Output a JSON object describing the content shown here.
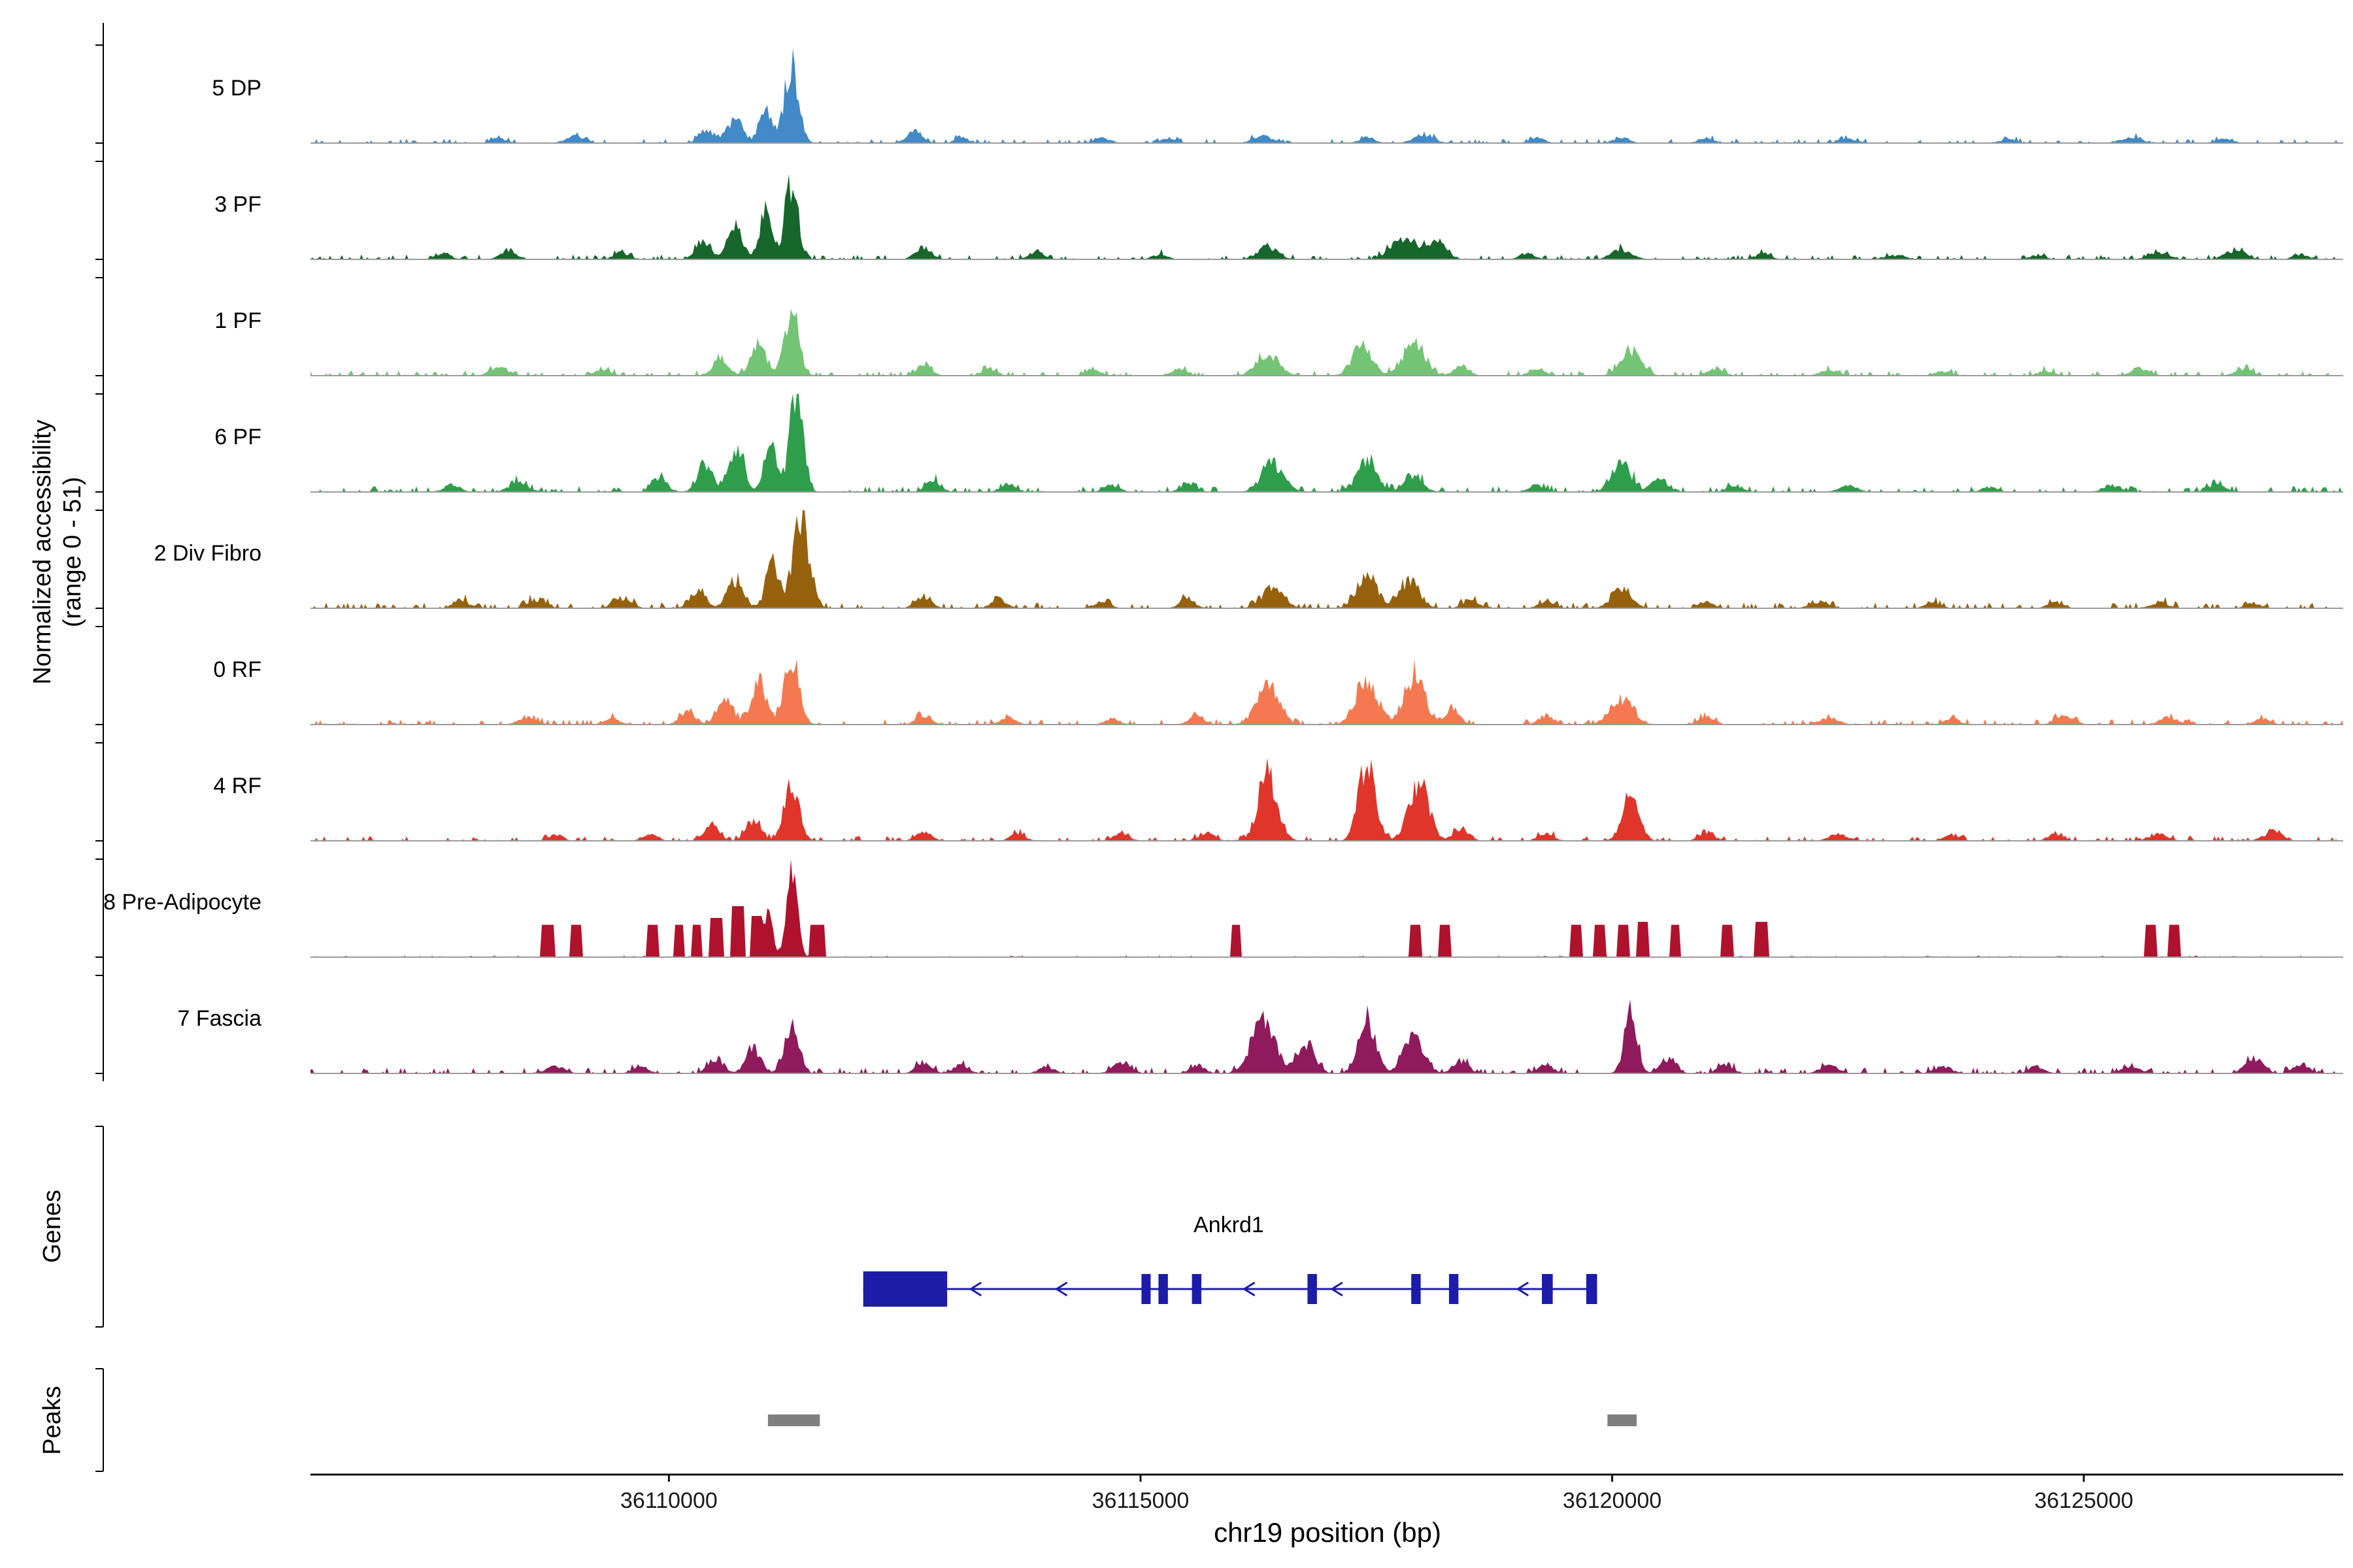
{
  "figure": {
    "y_axis_label_line1": "Normalized accessibility",
    "y_axis_label_line2": "(range 0 - 51)",
    "genes_section_label": "Genes",
    "peaks_section_label": "Peaks",
    "x_axis_label": "chr19 position (bp)"
  },
  "chart_data": {
    "type": "area",
    "subtype": "genome-coverage-tracks",
    "title": "",
    "x_axis": {
      "label": "chr19 position (bp)",
      "chromosome": "chr19",
      "min": 36106200,
      "max": 36127750,
      "ticks": [
        36110000,
        36115000,
        36120000,
        36125000
      ]
    },
    "y_axis": {
      "label": "Normalized accessibility",
      "range_note": "(range 0 - 51)",
      "min": 0,
      "max": 51
    },
    "height_units": "fraction of track maximum (51)",
    "tracks": [
      {
        "label": "5 DP",
        "color": "#4189C7",
        "noise": 0.045,
        "peaks": [
          [
            36111300,
            140,
            0.8
          ],
          [
            36111020,
            120,
            0.4
          ],
          [
            36110700,
            150,
            0.25
          ],
          [
            36110400,
            150,
            0.14
          ],
          [
            36108200,
            150,
            0.05
          ],
          [
            36109000,
            180,
            0.07
          ],
          [
            36112600,
            150,
            0.12
          ],
          [
            36113100,
            120,
            0.07
          ],
          [
            36114600,
            150,
            0.05
          ],
          [
            36115300,
            150,
            0.05
          ],
          [
            36116300,
            200,
            0.07
          ],
          [
            36117400,
            150,
            0.06
          ],
          [
            36118000,
            200,
            0.08
          ],
          [
            36119200,
            150,
            0.05
          ],
          [
            36120100,
            150,
            0.06
          ],
          [
            36121000,
            150,
            0.05
          ],
          [
            36122500,
            200,
            0.04
          ],
          [
            36124200,
            150,
            0.04
          ],
          [
            36125500,
            200,
            0.06
          ],
          [
            36126500,
            150,
            0.05
          ]
        ]
      },
      {
        "label": "3 PF",
        "color": "#17662C",
        "noise": 0.05,
        "peaks": [
          [
            36111300,
            130,
            0.78
          ],
          [
            36111020,
            120,
            0.45
          ],
          [
            36110700,
            160,
            0.33
          ],
          [
            36110350,
            150,
            0.18
          ],
          [
            36107600,
            150,
            0.06
          ],
          [
            36108300,
            150,
            0.1
          ],
          [
            36109500,
            150,
            0.07
          ],
          [
            36112700,
            160,
            0.12
          ],
          [
            36113900,
            150,
            0.08
          ],
          [
            36115200,
            150,
            0.05
          ],
          [
            36116350,
            200,
            0.13
          ],
          [
            36117800,
            260,
            0.22
          ],
          [
            36118150,
            180,
            0.16
          ],
          [
            36119100,
            150,
            0.06
          ],
          [
            36120100,
            200,
            0.1
          ],
          [
            36121600,
            150,
            0.06
          ],
          [
            36123000,
            200,
            0.04
          ],
          [
            36124500,
            150,
            0.04
          ],
          [
            36125800,
            200,
            0.07
          ],
          [
            36126600,
            200,
            0.09
          ],
          [
            36127300,
            150,
            0.05
          ]
        ]
      },
      {
        "label": "1 PF",
        "color": "#74C476",
        "noise": 0.055,
        "peaks": [
          [
            36111300,
            140,
            0.68
          ],
          [
            36110950,
            140,
            0.35
          ],
          [
            36110550,
            150,
            0.18
          ],
          [
            36108200,
            180,
            0.08
          ],
          [
            36109300,
            150,
            0.07
          ],
          [
            36112700,
            150,
            0.11
          ],
          [
            36113400,
            150,
            0.07
          ],
          [
            36114500,
            150,
            0.06
          ],
          [
            36115400,
            150,
            0.07
          ],
          [
            36116350,
            220,
            0.22
          ],
          [
            36117350,
            200,
            0.3
          ],
          [
            36117900,
            220,
            0.34
          ],
          [
            36118400,
            150,
            0.1
          ],
          [
            36119200,
            150,
            0.07
          ],
          [
            36120200,
            200,
            0.26
          ],
          [
            36121100,
            150,
            0.07
          ],
          [
            36122300,
            180,
            0.06
          ],
          [
            36123500,
            150,
            0.05
          ],
          [
            36124600,
            150,
            0.05
          ],
          [
            36125600,
            180,
            0.07
          ],
          [
            36126700,
            180,
            0.07
          ]
        ]
      },
      {
        "label": "6 PF",
        "color": "#2E9E4B",
        "noise": 0.06,
        "peaks": [
          [
            36111350,
            130,
            1.0
          ],
          [
            36111080,
            120,
            0.55
          ],
          [
            36110720,
            150,
            0.42
          ],
          [
            36110380,
            150,
            0.28
          ],
          [
            36109900,
            150,
            0.14
          ],
          [
            36108400,
            180,
            0.1
          ],
          [
            36107700,
            150,
            0.08
          ],
          [
            36112800,
            150,
            0.12
          ],
          [
            36113600,
            150,
            0.09
          ],
          [
            36114700,
            150,
            0.07
          ],
          [
            36115500,
            150,
            0.08
          ],
          [
            36116400,
            220,
            0.28
          ],
          [
            36117400,
            200,
            0.3
          ],
          [
            36117900,
            180,
            0.18
          ],
          [
            36119200,
            150,
            0.07
          ],
          [
            36120100,
            200,
            0.28
          ],
          [
            36120500,
            150,
            0.14
          ],
          [
            36121300,
            150,
            0.07
          ],
          [
            36122500,
            180,
            0.06
          ],
          [
            36124000,
            150,
            0.05
          ],
          [
            36125300,
            180,
            0.07
          ],
          [
            36126400,
            180,
            0.07
          ]
        ]
      },
      {
        "label": "2 Div Fibro",
        "color": "#96610D",
        "noise": 0.06,
        "peaks": [
          [
            36111400,
            160,
            0.92
          ],
          [
            36111100,
            130,
            0.5
          ],
          [
            36110700,
            160,
            0.28
          ],
          [
            36110300,
            150,
            0.18
          ],
          [
            36109500,
            180,
            0.1
          ],
          [
            36108600,
            180,
            0.09
          ],
          [
            36107800,
            150,
            0.08
          ],
          [
            36112700,
            160,
            0.11
          ],
          [
            36113500,
            150,
            0.09
          ],
          [
            36114600,
            150,
            0.07
          ],
          [
            36115500,
            150,
            0.09
          ],
          [
            36116400,
            220,
            0.2
          ],
          [
            36117400,
            200,
            0.34
          ],
          [
            36117850,
            200,
            0.28
          ],
          [
            36118500,
            150,
            0.09
          ],
          [
            36119300,
            150,
            0.07
          ],
          [
            36120100,
            200,
            0.18
          ],
          [
            36121000,
            150,
            0.07
          ],
          [
            36122200,
            180,
            0.07
          ],
          [
            36123400,
            150,
            0.06
          ],
          [
            36124700,
            150,
            0.06
          ],
          [
            36125800,
            180,
            0.06
          ],
          [
            36126800,
            150,
            0.05
          ]
        ]
      },
      {
        "label": "0 RF",
        "color": "#F47950",
        "noise": 0.055,
        "peaks": [
          [
            36111300,
            150,
            0.72
          ],
          [
            36110950,
            150,
            0.45
          ],
          [
            36110600,
            160,
            0.26
          ],
          [
            36110200,
            150,
            0.15
          ],
          [
            36108500,
            180,
            0.07
          ],
          [
            36109400,
            150,
            0.07
          ],
          [
            36112700,
            150,
            0.09
          ],
          [
            36113600,
            150,
            0.07
          ],
          [
            36114700,
            150,
            0.06
          ],
          [
            36115600,
            150,
            0.09
          ],
          [
            36116350,
            220,
            0.4
          ],
          [
            36117400,
            220,
            0.45
          ],
          [
            36117900,
            200,
            0.5
          ],
          [
            36118300,
            150,
            0.16
          ],
          [
            36119300,
            150,
            0.09
          ],
          [
            36120100,
            220,
            0.26
          ],
          [
            36121000,
            150,
            0.09
          ],
          [
            36122300,
            180,
            0.07
          ],
          [
            36123600,
            150,
            0.06
          ],
          [
            36124800,
            180,
            0.09
          ],
          [
            36125900,
            180,
            0.07
          ],
          [
            36126900,
            150,
            0.06
          ]
        ]
      },
      {
        "label": "4 RF",
        "color": "#E0352A",
        "noise": 0.05,
        "peaks": [
          [
            36111300,
            150,
            0.55
          ],
          [
            36110900,
            150,
            0.22
          ],
          [
            36110450,
            150,
            0.16
          ],
          [
            36108800,
            150,
            0.06
          ],
          [
            36109800,
            150,
            0.06
          ],
          [
            36112700,
            150,
            0.09
          ],
          [
            36113700,
            150,
            0.07
          ],
          [
            36114800,
            150,
            0.07
          ],
          [
            36115700,
            150,
            0.09
          ],
          [
            36116350,
            190,
            0.7
          ],
          [
            36117400,
            170,
            0.77
          ],
          [
            36117950,
            200,
            0.58
          ],
          [
            36118400,
            150,
            0.13
          ],
          [
            36119300,
            150,
            0.07
          ],
          [
            36120200,
            170,
            0.46
          ],
          [
            36121000,
            150,
            0.09
          ],
          [
            36122400,
            180,
            0.07
          ],
          [
            36123600,
            150,
            0.06
          ],
          [
            36124700,
            150,
            0.07
          ],
          [
            36125800,
            180,
            0.07
          ],
          [
            36127000,
            180,
            0.09
          ]
        ]
      },
      {
        "label": "8 Pre-Adipocyte",
        "color": "#B0122D",
        "noise": 0.015,
        "peaks": [
          [
            36111300,
            110,
            0.88
          ],
          [
            36111050,
            90,
            0.45
          ]
        ],
        "blocks": [
          [
            36108650,
            36108790,
            0.33
          ],
          [
            36108950,
            36109080,
            0.33
          ],
          [
            36109760,
            36109880,
            0.33
          ],
          [
            36110060,
            36110170,
            0.33
          ],
          [
            36110240,
            36110350,
            0.33
          ],
          [
            36110430,
            36110570,
            0.4
          ],
          [
            36110660,
            36110800,
            0.52
          ],
          [
            36110870,
            36111000,
            0.42
          ],
          [
            36111500,
            36111650,
            0.33
          ],
          [
            36115950,
            36116060,
            0.33
          ],
          [
            36117860,
            36117970,
            0.33
          ],
          [
            36118160,
            36118290,
            0.33
          ],
          [
            36119560,
            36119690,
            0.33
          ],
          [
            36119810,
            36119930,
            0.33
          ],
          [
            36120060,
            36120170,
            0.33
          ],
          [
            36120260,
            36120390,
            0.36
          ],
          [
            36120610,
            36120730,
            0.33
          ],
          [
            36121160,
            36121290,
            0.33
          ],
          [
            36121510,
            36121660,
            0.36
          ],
          [
            36125650,
            36125780,
            0.33
          ],
          [
            36125900,
            36126020,
            0.33
          ]
        ]
      },
      {
        "label": "7 Fascia",
        "color": "#8F1A5C",
        "noise": 0.06,
        "peaks": [
          [
            36111300,
            140,
            0.48
          ],
          [
            36110900,
            150,
            0.26
          ],
          [
            36110500,
            150,
            0.16
          ],
          [
            36108800,
            180,
            0.08
          ],
          [
            36109700,
            150,
            0.07
          ],
          [
            36112700,
            150,
            0.12
          ],
          [
            36113100,
            150,
            0.09
          ],
          [
            36114000,
            150,
            0.07
          ],
          [
            36114800,
            180,
            0.1
          ],
          [
            36115600,
            150,
            0.09
          ],
          [
            36116300,
            240,
            0.5
          ],
          [
            36116750,
            180,
            0.32
          ],
          [
            36117400,
            170,
            0.56
          ],
          [
            36117900,
            200,
            0.4
          ],
          [
            36118400,
            150,
            0.13
          ],
          [
            36119300,
            150,
            0.09
          ],
          [
            36120200,
            130,
            0.62
          ],
          [
            36120600,
            150,
            0.16
          ],
          [
            36121200,
            150,
            0.09
          ],
          [
            36122300,
            180,
            0.08
          ],
          [
            36123500,
            180,
            0.07
          ],
          [
            36124500,
            150,
            0.07
          ],
          [
            36125500,
            180,
            0.08
          ],
          [
            36126800,
            180,
            0.16
          ],
          [
            36127300,
            150,
            0.1
          ]
        ]
      }
    ],
    "gene": {
      "name": "Ankrd1",
      "strand": "-",
      "color": "#1C1CA8",
      "start": 36112060,
      "end": 36119840,
      "label_center": 36115935,
      "exons": [
        [
          36112060,
          36112950
        ],
        [
          36115010,
          36115100
        ],
        [
          36115190,
          36115290
        ],
        [
          36115545,
          36115645
        ],
        [
          36116770,
          36116870
        ],
        [
          36117870,
          36117970
        ],
        [
          36118270,
          36118370
        ],
        [
          36119255,
          36119370
        ],
        [
          36119725,
          36119840
        ]
      ],
      "arrows": [
        36113200,
        36114110,
        36116100,
        36117030,
        36119000
      ]
    },
    "peaks": {
      "color": "#7F7F7F",
      "intervals": [
        [
          36111050,
          36111600
        ],
        [
          36119950,
          36120260
        ]
      ]
    }
  }
}
